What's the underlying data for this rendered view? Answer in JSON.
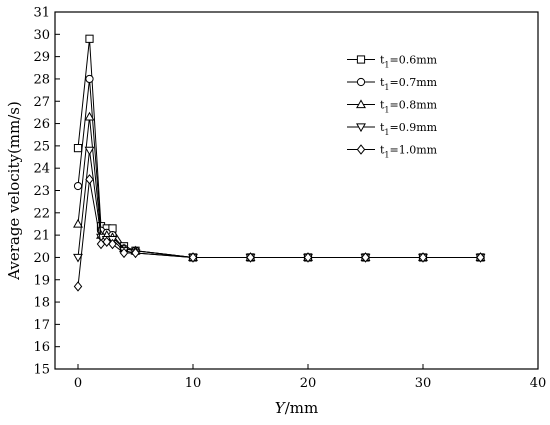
{
  "chart_data": {
    "type": "line",
    "xlabel": "Y/mm",
    "ylabel": "Average velocity(mm/s)",
    "xlim": [
      -2,
      40
    ],
    "ylim": [
      15,
      31
    ],
    "xticks": [
      0,
      10,
      20,
      30,
      40
    ],
    "yticks": [
      15,
      16,
      17,
      18,
      19,
      20,
      21,
      22,
      23,
      24,
      25,
      26,
      27,
      28,
      29,
      30,
      31
    ],
    "grid": false,
    "legend_position": "top-right",
    "line_color": "#000000",
    "series": [
      {
        "name": "t1=0.6mm",
        "label_main": "t",
        "label_sub": "1",
        "label_rest": "=0.6mm",
        "marker": "square",
        "x": [
          0,
          1,
          2,
          2.5,
          3,
          4,
          5,
          10,
          15,
          20,
          25,
          30,
          35
        ],
        "y": [
          24.9,
          29.8,
          21.4,
          21.3,
          21.3,
          20.5,
          20.3,
          20.0,
          20.0,
          20.0,
          20.0,
          20.0,
          20.0
        ]
      },
      {
        "name": "t1=0.7mm",
        "label_main": "t",
        "label_sub": "1",
        "label_rest": "=0.7mm",
        "marker": "circle",
        "x": [
          0,
          1,
          2,
          2.5,
          3,
          4,
          5,
          10,
          15,
          20,
          25,
          30,
          35
        ],
        "y": [
          23.2,
          28.0,
          21.2,
          21.1,
          21.0,
          20.4,
          20.3,
          20.0,
          20.0,
          20.0,
          20.0,
          20.0,
          20.0
        ]
      },
      {
        "name": "t1=0.8mm",
        "label_main": "t",
        "label_sub": "1",
        "label_rest": "=0.8mm",
        "marker": "triangle-up",
        "x": [
          0,
          1,
          2,
          2.5,
          3,
          4,
          5,
          10,
          15,
          20,
          25,
          30,
          35
        ],
        "y": [
          21.5,
          26.3,
          21.0,
          21.0,
          20.9,
          20.4,
          20.3,
          20.0,
          20.0,
          20.0,
          20.0,
          20.0,
          20.0
        ]
      },
      {
        "name": "t1=0.9mm",
        "label_main": "t",
        "label_sub": "1",
        "label_rest": "=0.9mm",
        "marker": "triangle-down",
        "x": [
          0,
          1,
          2,
          2.5,
          3,
          4,
          5,
          10,
          15,
          20,
          25,
          30,
          35
        ],
        "y": [
          20.0,
          24.8,
          20.9,
          20.8,
          20.8,
          20.3,
          20.2,
          20.0,
          20.0,
          20.0,
          20.0,
          20.0,
          20.0
        ]
      },
      {
        "name": "t1=1.0mm",
        "label_main": "t",
        "label_sub": "1",
        "label_rest": "=1.0mm",
        "marker": "diamond",
        "x": [
          0,
          1,
          2,
          2.5,
          3,
          4,
          5,
          10,
          15,
          20,
          25,
          30,
          35
        ],
        "y": [
          18.7,
          23.5,
          20.6,
          20.7,
          20.6,
          20.2,
          20.2,
          20.0,
          20.0,
          20.0,
          20.0,
          20.0,
          20.0
        ]
      }
    ]
  }
}
